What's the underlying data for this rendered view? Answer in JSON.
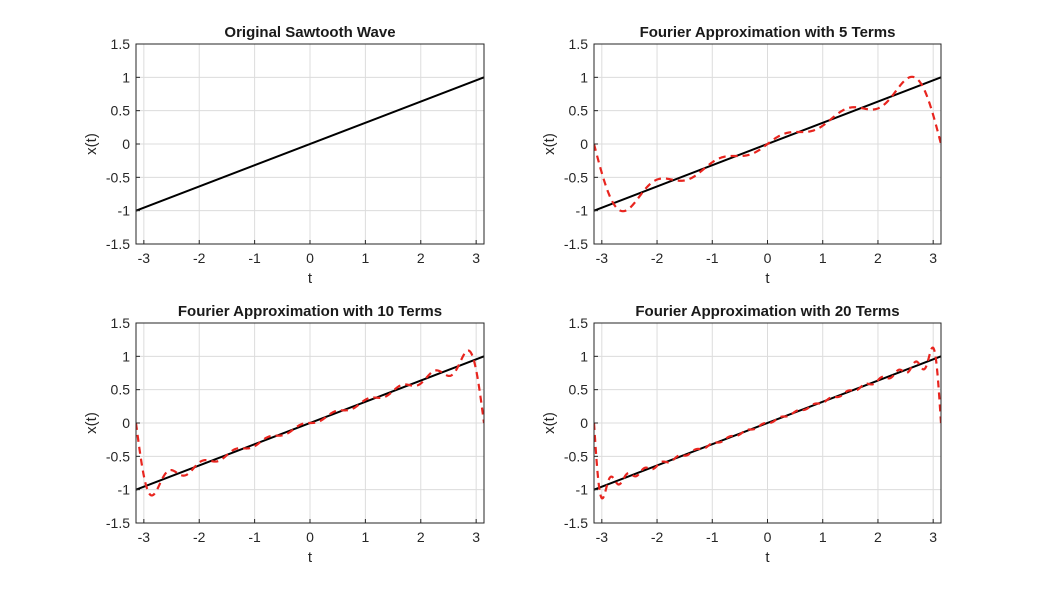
{
  "chart_data": [
    {
      "type": "line",
      "title": "Original Sawtooth Wave",
      "xlabel": "t",
      "ylabel": "x(t)",
      "xlim": [
        -3.1416,
        3.1416
      ],
      "ylim": [
        -1.5,
        1.5
      ],
      "xticks": [
        "-3",
        "-2",
        "-1",
        "0",
        "1",
        "2",
        "3"
      ],
      "yticks": [
        "1.5",
        "1",
        "0.5",
        "0",
        "-0.5",
        "-1",
        "-1.5"
      ],
      "grid": true,
      "terms": 0,
      "series": [
        {
          "style": "solid",
          "color": "#000000",
          "x": [
            -3.1416,
            3.1416
          ],
          "y": [
            -1,
            1
          ]
        }
      ]
    },
    {
      "type": "line",
      "title": "Fourier Approximation with 5 Terms",
      "xlabel": "t",
      "ylabel": "x(t)",
      "xlim": [
        -3.1416,
        3.1416
      ],
      "ylim": [
        -1.5,
        1.5
      ],
      "xticks": [
        "-3",
        "-2",
        "-1",
        "0",
        "1",
        "2",
        "3"
      ],
      "yticks": [
        "1.5",
        "1",
        "0.5",
        "0",
        "-0.5",
        "-1",
        "-1.5"
      ],
      "grid": true,
      "terms": 5,
      "series": [
        {
          "style": "solid",
          "color": "#000000",
          "x": [
            -3.1416,
            3.1416
          ],
          "y": [
            -1,
            1
          ]
        },
        {
          "style": "dashed",
          "color": "#e8251f",
          "fourier_terms": 5
        }
      ]
    },
    {
      "type": "line",
      "title": "Fourier Approximation with 10 Terms",
      "xlabel": "t",
      "ylabel": "x(t)",
      "xlim": [
        -3.1416,
        3.1416
      ],
      "ylim": [
        -1.5,
        1.5
      ],
      "xticks": [
        "-3",
        "-2",
        "-1",
        "0",
        "1",
        "2",
        "3"
      ],
      "yticks": [
        "1.5",
        "1",
        "0.5",
        "0",
        "-0.5",
        "-1",
        "-1.5"
      ],
      "grid": true,
      "terms": 10,
      "series": [
        {
          "style": "solid",
          "color": "#000000",
          "x": [
            -3.1416,
            3.1416
          ],
          "y": [
            -1,
            1
          ]
        },
        {
          "style": "dashed",
          "color": "#e8251f",
          "fourier_terms": 10
        }
      ]
    },
    {
      "type": "line",
      "title": "Fourier Approximation with 20 Terms",
      "xlabel": "t",
      "ylabel": "x(t)",
      "xlim": [
        -3.1416,
        3.1416
      ],
      "ylim": [
        -1.5,
        1.5
      ],
      "xticks": [
        "-3",
        "-2",
        "-1",
        "0",
        "1",
        "2",
        "3"
      ],
      "yticks": [
        "1.5",
        "1",
        "0.5",
        "0",
        "-0.5",
        "-1",
        "-1.5"
      ],
      "grid": true,
      "terms": 20,
      "series": [
        {
          "style": "solid",
          "color": "#000000",
          "x": [
            -3.1416,
            3.1416
          ],
          "y": [
            -1,
            1
          ]
        },
        {
          "style": "dashed",
          "color": "#e8251f",
          "fourier_terms": 20
        }
      ]
    }
  ]
}
